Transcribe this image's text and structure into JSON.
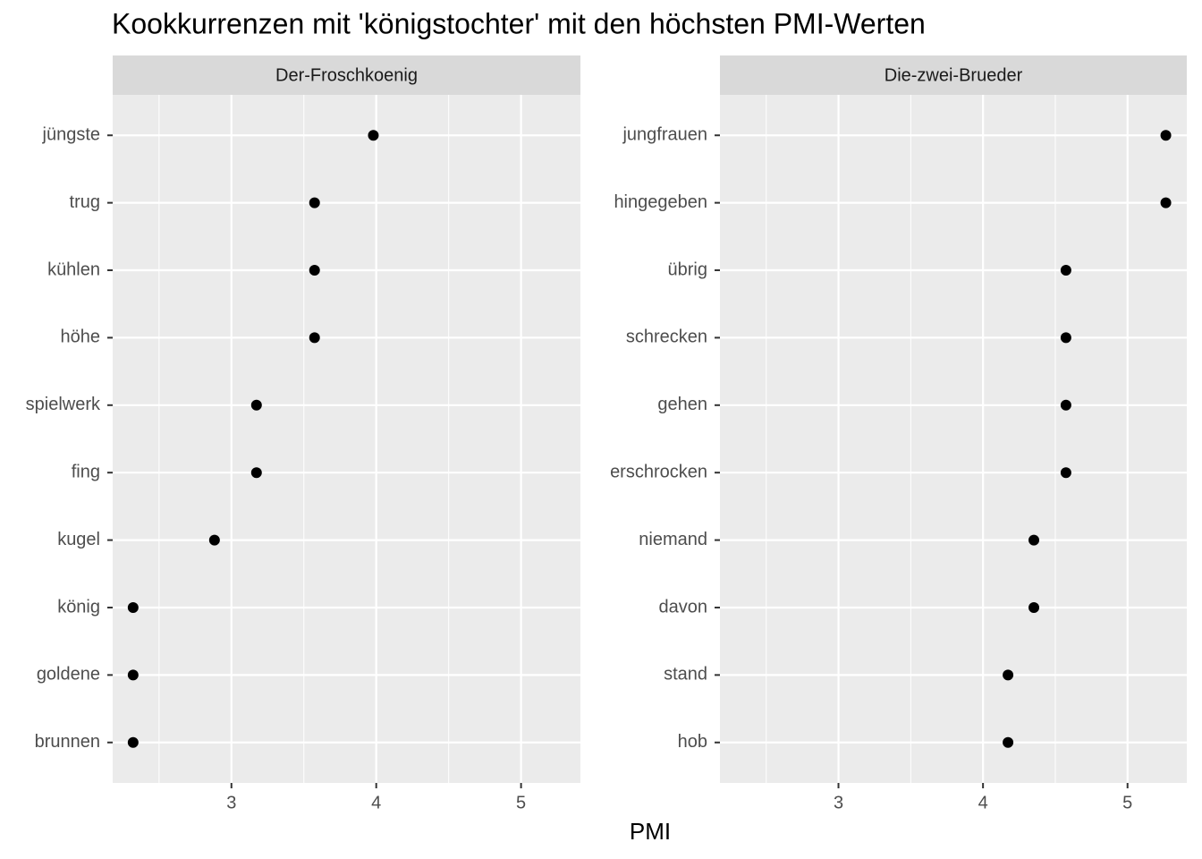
{
  "title": "Kookkurrenzen mit 'königstochter' mit den höchsten PMI-Werten",
  "x_label": "PMI",
  "chart_data": [
    {
      "type": "dot",
      "facet": "Der-Froschkoenig",
      "categories": [
        "jüngste",
        "trug",
        "kühlen",
        "höhe",
        "spielwerk",
        "fing",
        "kugel",
        "könig",
        "goldene",
        "brunnen"
      ],
      "values": [
        3.98,
        3.574,
        3.574,
        3.574,
        3.173,
        3.173,
        2.883,
        2.321,
        2.321,
        2.321
      ],
      "color": "#000000",
      "xlim": [
        2.18,
        5.41
      ],
      "xticks": [
        3,
        4,
        5
      ],
      "x_minor_grid": [
        2.5,
        3.5,
        4.5
      ],
      "grid": true
    },
    {
      "type": "dot",
      "facet": "Die-zwei-Brueder",
      "categories": [
        "jungfrauen",
        "hingegeben",
        "übrig",
        "schrecken",
        "gehen",
        "erschrocken",
        "niemand",
        "davon",
        "stand",
        "hob"
      ],
      "values": [
        5.265,
        5.265,
        4.574,
        4.574,
        4.574,
        4.574,
        4.352,
        4.352,
        4.173,
        4.173
      ],
      "color": "#000000",
      "xlim": [
        2.18,
        5.41
      ],
      "xticks": [
        3,
        4,
        5
      ],
      "x_minor_grid": [
        2.5,
        3.5,
        4.5
      ],
      "grid": true
    }
  ]
}
